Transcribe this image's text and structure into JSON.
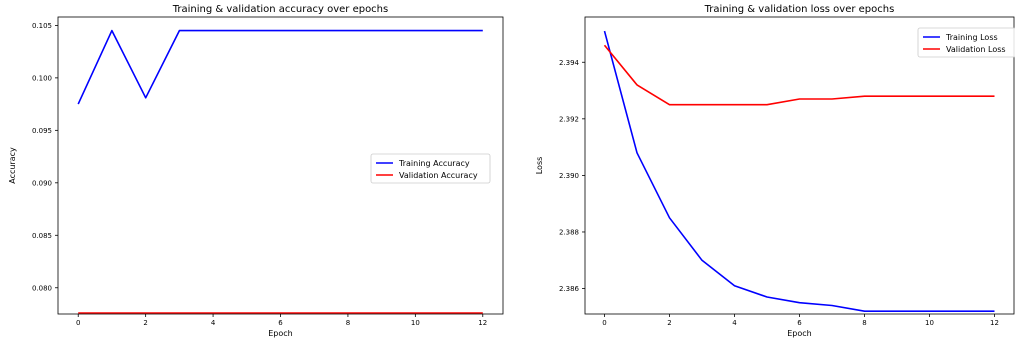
{
  "chart_data": [
    {
      "type": "line",
      "title": "Training & validation accuracy over epochs",
      "xlabel": "Epoch",
      "ylabel": "Accuracy",
      "xlim": [
        -0.6,
        12.6
      ],
      "ylim": [
        0.0775,
        0.1058
      ],
      "xticks": [
        0,
        2,
        4,
        6,
        8,
        10,
        12
      ],
      "yticks": [
        0.08,
        0.085,
        0.09,
        0.095,
        0.1,
        0.105
      ],
      "ytick_labels": [
        "0.080",
        "0.085",
        "0.090",
        "0.095",
        "0.100",
        "0.105"
      ],
      "legend_position": "center-right",
      "x": [
        0,
        1,
        2,
        3,
        4,
        5,
        6,
        7,
        8,
        9,
        10,
        11,
        12
      ],
      "series": [
        {
          "name": "Training Accuracy",
          "color": "#0000ff",
          "values": [
            0.0975,
            0.1045,
            0.0981,
            0.1045,
            0.1045,
            0.1045,
            0.1045,
            0.1045,
            0.1045,
            0.1045,
            0.1045,
            0.1045,
            0.1045
          ]
        },
        {
          "name": "Validation Accuracy",
          "color": "#ff0000",
          "values": [
            0.0776,
            0.0776,
            0.0776,
            0.0776,
            0.0776,
            0.0776,
            0.0776,
            0.0776,
            0.0776,
            0.0776,
            0.0776,
            0.0776,
            0.0776
          ]
        }
      ]
    },
    {
      "type": "line",
      "title": "Training & validation loss over epochs",
      "xlabel": "Epoch",
      "ylabel": "Loss",
      "xlim": [
        -0.6,
        12.6
      ],
      "ylim": [
        2.3851,
        2.3956
      ],
      "xticks": [
        0,
        2,
        4,
        6,
        8,
        10,
        12
      ],
      "yticks": [
        2.386,
        2.388,
        2.39,
        2.392,
        2.394
      ],
      "ytick_labels": [
        "2.386",
        "2.388",
        "2.390",
        "2.392",
        "2.394"
      ],
      "legend_position": "top-right",
      "x": [
        0,
        1,
        2,
        3,
        4,
        5,
        6,
        7,
        8,
        9,
        10,
        11,
        12
      ],
      "series": [
        {
          "name": "Training Loss",
          "color": "#0000ff",
          "values": [
            2.3951,
            2.3908,
            2.3885,
            2.387,
            2.3861,
            2.3857,
            2.3855,
            2.3854,
            2.3852,
            2.3852,
            2.3852,
            2.3852,
            2.3852
          ]
        },
        {
          "name": "Validation Loss",
          "color": "#ff0000",
          "values": [
            2.3946,
            2.3932,
            2.3925,
            2.3925,
            2.3925,
            2.3925,
            2.3927,
            2.3927,
            2.3928,
            2.3928,
            2.3928,
            2.3928,
            2.3928
          ]
        }
      ]
    }
  ]
}
